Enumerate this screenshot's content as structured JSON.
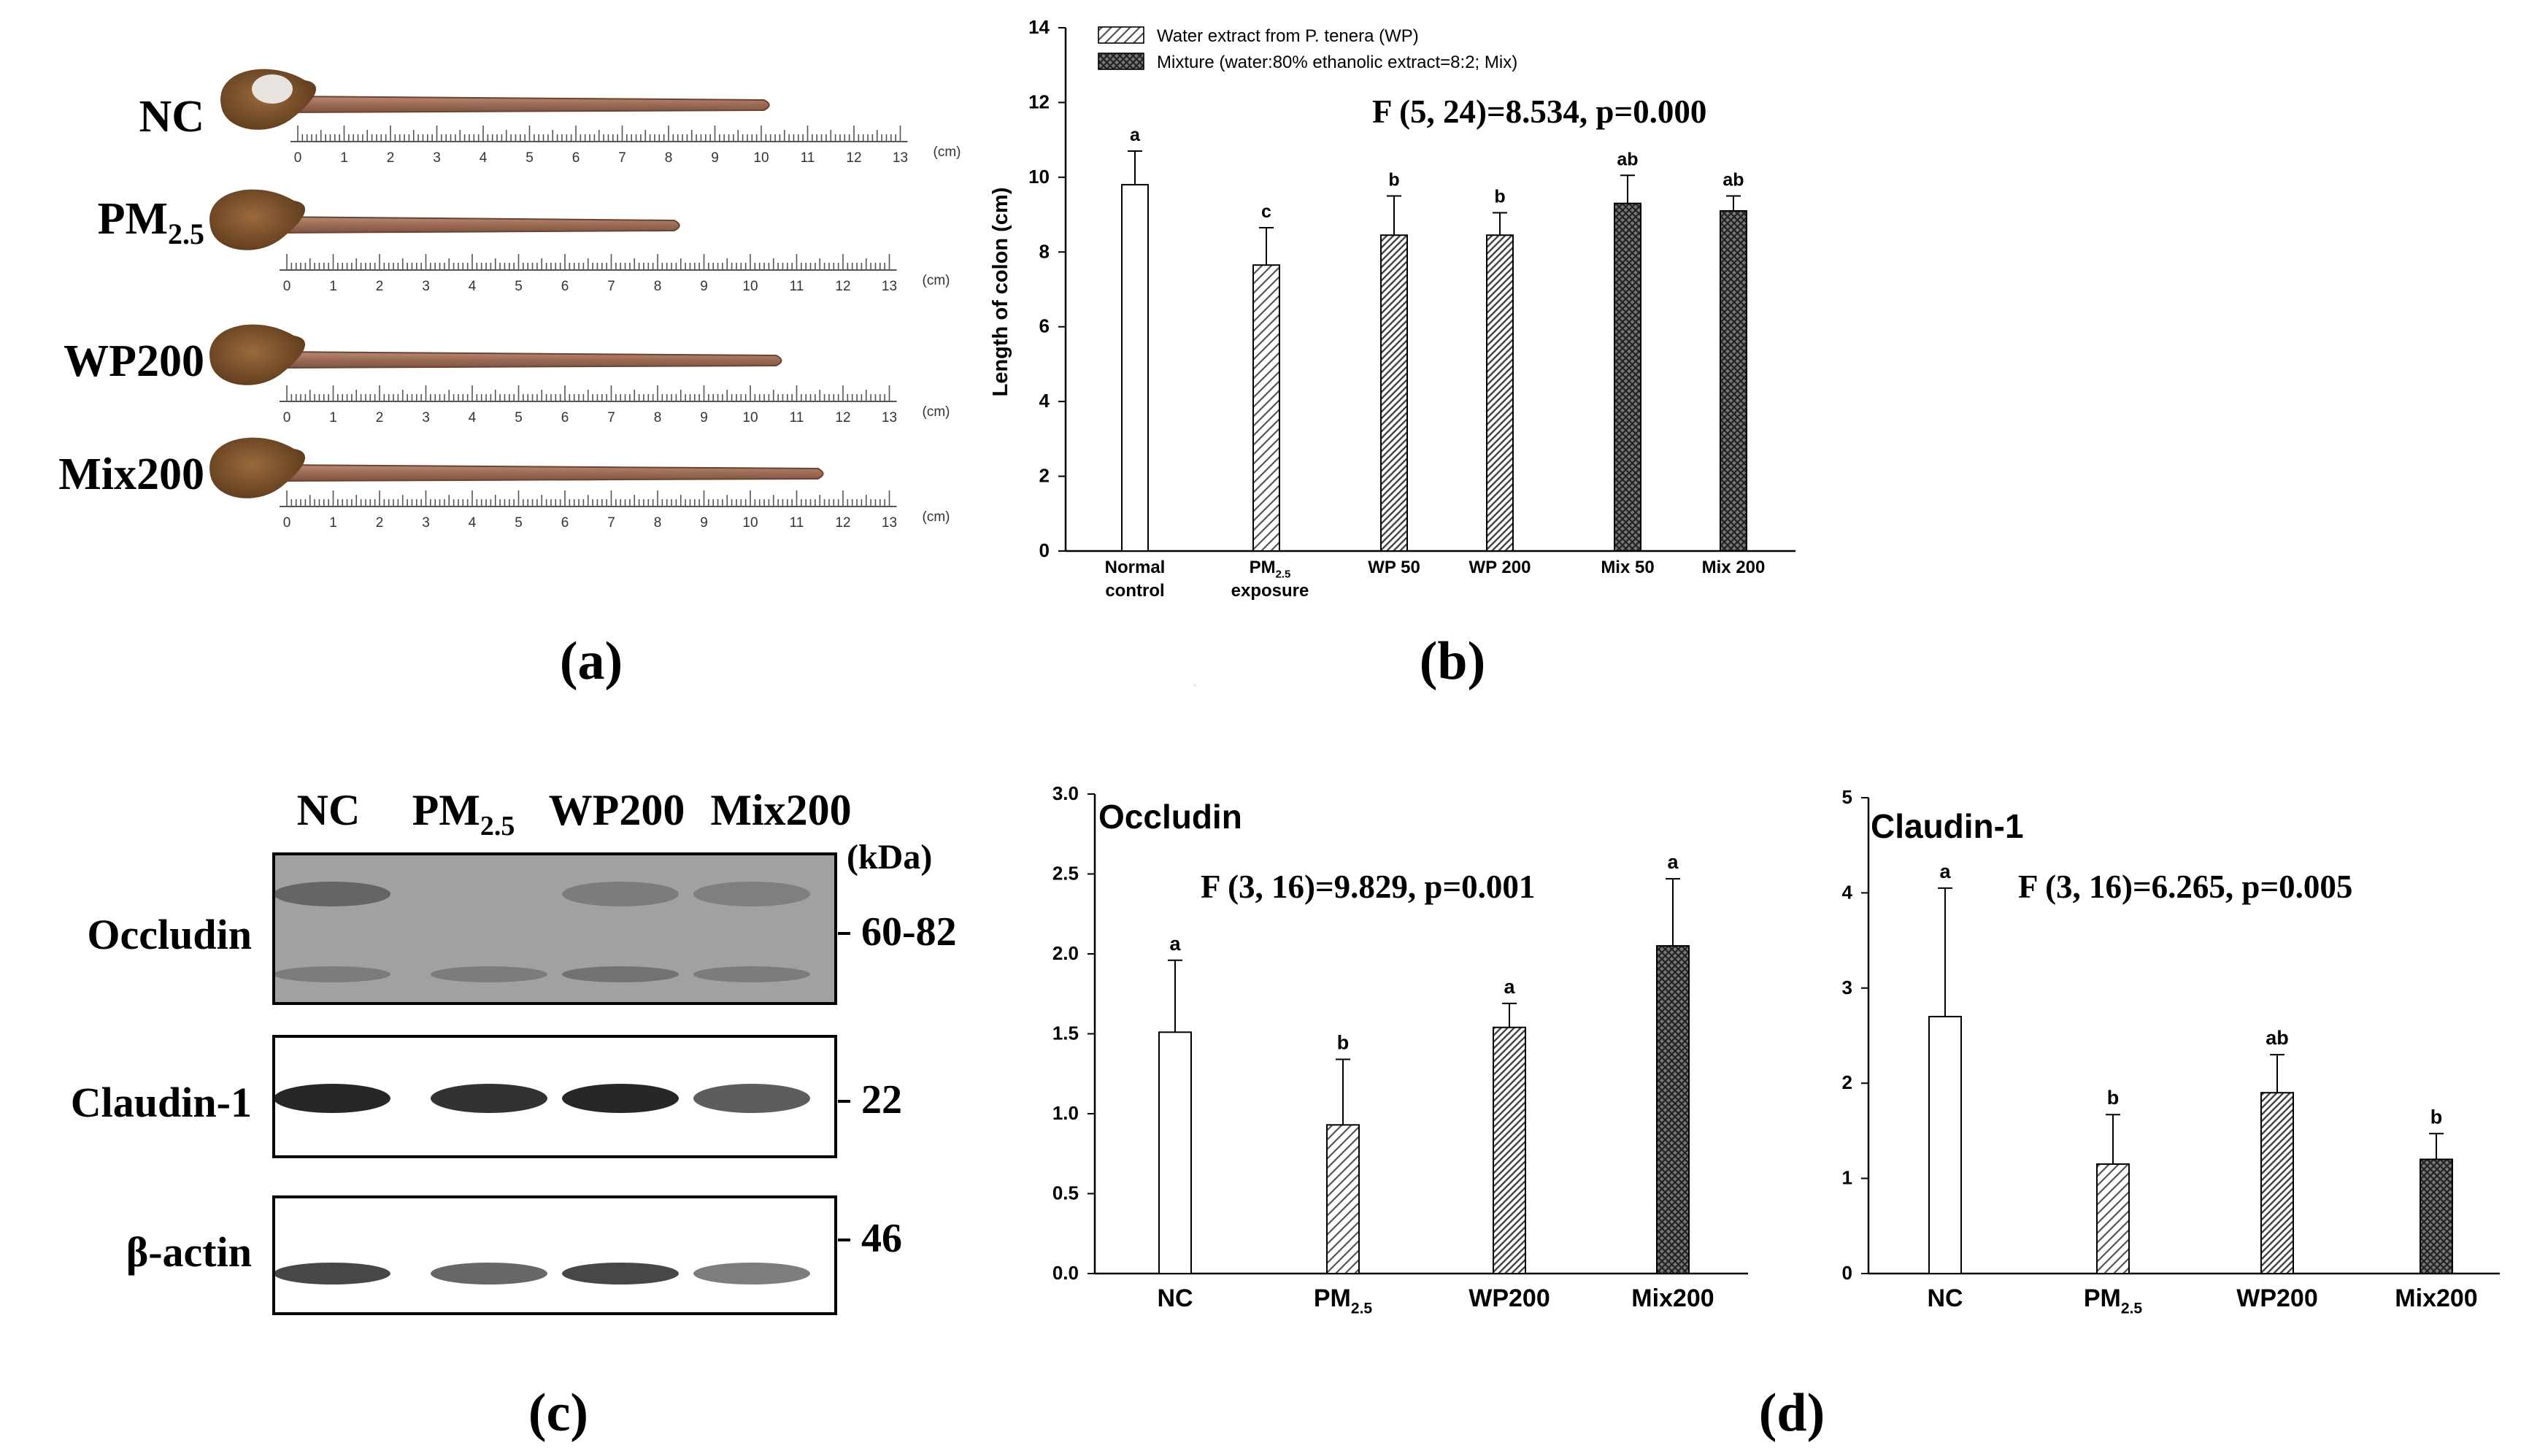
{
  "panel_a": {
    "label": "(a)",
    "rows": [
      {
        "label": "NC",
        "colon_length_cm": 10.5
      },
      {
        "label": "PM",
        "sub": "2.5",
        "colon_length_cm": 8.8
      },
      {
        "label": "WP200",
        "colon_length_cm": 11.0
      },
      {
        "label": "Mix200",
        "colon_length_cm": 11.9
      }
    ],
    "ruler_ticks": [
      "0",
      "1",
      "2",
      "3",
      "4",
      "5",
      "6",
      "7",
      "8",
      "9",
      "10",
      "11",
      "12",
      "13"
    ],
    "ruler_unit": "(cm)"
  },
  "panel_c": {
    "label": "(c)",
    "lanes": [
      "NC",
      "PM2.5",
      "WP200",
      "Mix200"
    ],
    "kda_header": "(kDa)",
    "blots": [
      {
        "name": "Occludin",
        "kda": "60-82"
      },
      {
        "name": "Claudin-1",
        "kda": "22"
      },
      {
        "name": "β-actin",
        "kda": "46"
      }
    ]
  },
  "panel_d_label": "(d)",
  "chart_data": [
    {
      "panel": "(b)",
      "type": "bar",
      "categories": [
        "Normal control",
        "PM2.5 exposure",
        "WP 50",
        "WP 200",
        "Mix 50",
        "Mix 200"
      ],
      "values": [
        9.8,
        7.65,
        8.45,
        8.45,
        9.3,
        9.1
      ],
      "errors": [
        0.9,
        1.0,
        1.05,
        0.6,
        0.75,
        0.4
      ],
      "letters": [
        "a",
        "c",
        "b",
        "b",
        "ab",
        "ab"
      ],
      "ylabel": "Length of colon (cm)",
      "ylim": [
        0,
        14
      ],
      "yticks": [
        "0",
        "2",
        "4",
        "6",
        "8",
        "10",
        "12",
        "14"
      ],
      "stat": "F (5, 24)=8.534, p=0.000",
      "legend": [
        {
          "text": "Water extract from P. tenera (WP)"
        },
        {
          "text": "Mixture (water:80% ethanolic extract=8:2; Mix)"
        }
      ]
    },
    {
      "panel": "(d)",
      "type": "bar",
      "title": "Occludin",
      "categories": [
        "NC",
        "PM2.5",
        "WP200",
        "Mix200"
      ],
      "values": [
        1.51,
        0.93,
        1.54,
        2.05
      ],
      "errors": [
        0.45,
        0.41,
        0.15,
        0.42
      ],
      "letters": [
        "a",
        "b",
        "a",
        "a"
      ],
      "ylim": [
        0,
        3.0
      ],
      "yticks": [
        "0.0",
        "0.5",
        "1.0",
        "1.5",
        "2.0",
        "2.5",
        "3.0"
      ],
      "stat": "F (3, 16)=9.829, p=0.001"
    },
    {
      "panel": "(d)",
      "type": "bar",
      "title": "Claudin-1",
      "categories": [
        "NC",
        "PM2.5",
        "WP200",
        "Mix200"
      ],
      "values": [
        2.7,
        1.15,
        1.9,
        1.2
      ],
      "errors": [
        1.35,
        0.52,
        0.4,
        0.27
      ],
      "letters": [
        "a",
        "b",
        "ab",
        "b"
      ],
      "ylim": [
        0,
        5
      ],
      "yticks": [
        "0",
        "1",
        "2",
        "3",
        "4",
        "5"
      ],
      "stat": "F (3, 16)=6.265, p=0.005"
    }
  ]
}
